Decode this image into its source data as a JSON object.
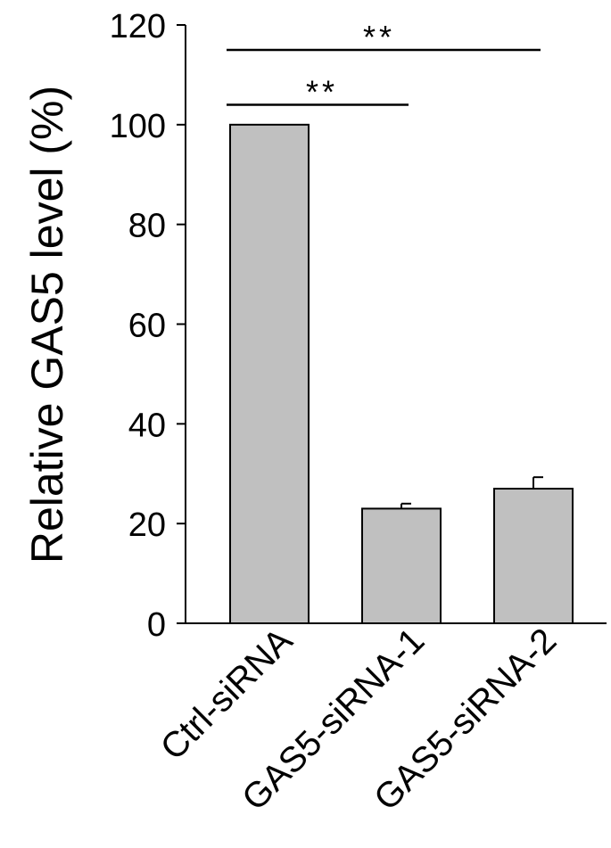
{
  "chart_data": {
    "type": "bar",
    "categories": [
      "Ctrl-siRNA",
      "GAS5-siRNA-1",
      "GAS5-siRNA-2"
    ],
    "values": [
      100,
      23,
      27
    ],
    "errors": [
      0,
      1,
      2.3
    ],
    "ylabel": "Relative GAS5 level (%)",
    "xlabel": "",
    "title": "",
    "ylim": [
      0,
      120
    ],
    "yticks": [
      0,
      20,
      40,
      60,
      80,
      100,
      120
    ],
    "grid": false,
    "bar_color": "#c0c0c0",
    "edge_color": "#000000",
    "significance": [
      {
        "from": 0,
        "to": 2,
        "label": "**",
        "y": 115
      },
      {
        "from": 0,
        "to": 1,
        "label": "**",
        "y": 104
      }
    ]
  }
}
